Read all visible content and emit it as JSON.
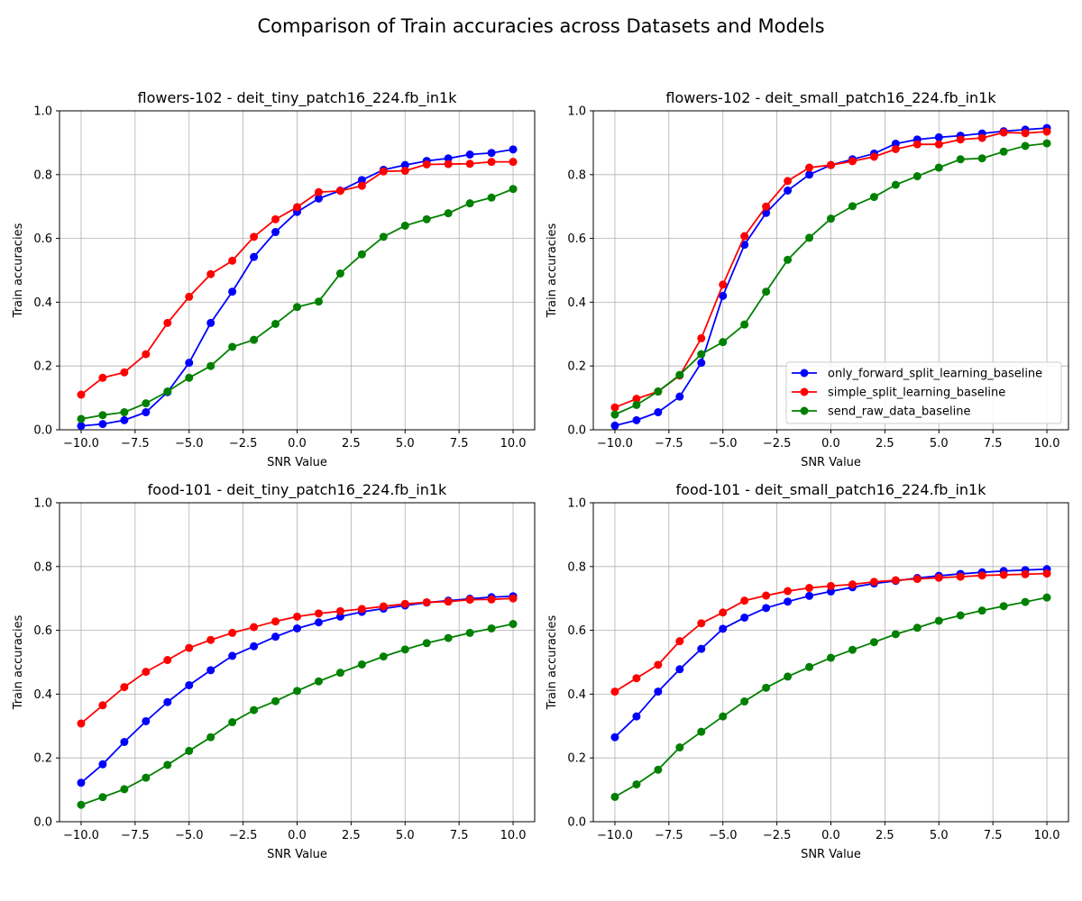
{
  "suptitle": "Comparison of Train accuracies across Datasets and Models",
  "colors": {
    "only_forward_split_learning_baseline": "#0000ff",
    "simple_split_learning_baseline": "#ff0000",
    "send_raw_data_baseline": "#008000",
    "grid": "#b0b0b0",
    "axes": "#000000"
  },
  "legend": {
    "placement": "lower-right",
    "shown_in_panel": 1,
    "entries": [
      "only_forward_split_learning_baseline",
      "simple_split_learning_baseline",
      "send_raw_data_baseline"
    ]
  },
  "chart_data": [
    {
      "type": "line",
      "title": "flowers-102 - deit_tiny_patch16_224.fb_in1k",
      "xlabel": "SNR Value",
      "ylabel": "Train accuracies",
      "xlim": [
        -11,
        11
      ],
      "ylim": [
        0,
        1
      ],
      "xticks": [
        -10,
        -7.5,
        -5,
        -2.5,
        0,
        2.5,
        5,
        7.5,
        10
      ],
      "xtick_labels": [
        "−10.0",
        "−7.5",
        "−5.0",
        "−2.5",
        "0.0",
        "2.5",
        "5.0",
        "7.5",
        "10.0"
      ],
      "yticks": [
        0,
        0.2,
        0.4,
        0.6,
        0.8,
        1.0
      ],
      "ytick_labels": [
        "0.0",
        "0.2",
        "0.4",
        "0.6",
        "0.8",
        "1.0"
      ],
      "grid": true,
      "x": [
        -10,
        -9,
        -8,
        -7,
        -6,
        -5,
        -4,
        -3,
        -2,
        -1,
        0,
        1,
        2,
        3,
        4,
        5,
        6,
        7,
        8,
        9,
        10
      ],
      "series": [
        {
          "name": "only_forward_split_learning_baseline",
          "values": [
            0.012,
            0.018,
            0.03,
            0.055,
            0.118,
            0.21,
            0.335,
            0.433,
            0.542,
            0.62,
            0.683,
            0.725,
            0.75,
            0.783,
            0.815,
            0.83,
            0.843,
            0.851,
            0.863,
            0.868,
            0.879
          ]
        },
        {
          "name": "simple_split_learning_baseline",
          "values": [
            0.11,
            0.163,
            0.18,
            0.237,
            0.335,
            0.417,
            0.488,
            0.53,
            0.605,
            0.66,
            0.698,
            0.745,
            0.749,
            0.765,
            0.81,
            0.812,
            0.832,
            0.833,
            0.834,
            0.84,
            0.84
          ]
        },
        {
          "name": "send_raw_data_baseline",
          "values": [
            0.034,
            0.046,
            0.055,
            0.083,
            0.12,
            0.163,
            0.2,
            0.26,
            0.282,
            0.332,
            0.385,
            0.402,
            0.49,
            0.55,
            0.605,
            0.64,
            0.66,
            0.679,
            0.71,
            0.728,
            0.755
          ]
        }
      ]
    },
    {
      "type": "line",
      "title": "flowers-102 - deit_small_patch16_224.fb_in1k",
      "xlabel": "SNR Value",
      "ylabel": "Train accuracies",
      "xlim": [
        -11,
        11
      ],
      "ylim": [
        0,
        1
      ],
      "xticks": [
        -10,
        -7.5,
        -5,
        -2.5,
        0,
        2.5,
        5,
        7.5,
        10
      ],
      "xtick_labels": [
        "−10.0",
        "−7.5",
        "−5.0",
        "−2.5",
        "0.0",
        "2.5",
        "5.0",
        "7.5",
        "10.0"
      ],
      "yticks": [
        0,
        0.2,
        0.4,
        0.6,
        0.8,
        1.0
      ],
      "ytick_labels": [
        "0.0",
        "0.2",
        "0.4",
        "0.6",
        "0.8",
        "1.0"
      ],
      "grid": true,
      "x": [
        -10,
        -9,
        -8,
        -7,
        -6,
        -5,
        -4,
        -3,
        -2,
        -1,
        0,
        1,
        2,
        3,
        4,
        5,
        6,
        7,
        8,
        9,
        10
      ],
      "series": [
        {
          "name": "only_forward_split_learning_baseline",
          "values": [
            0.013,
            0.03,
            0.055,
            0.104,
            0.21,
            0.42,
            0.58,
            0.68,
            0.75,
            0.8,
            0.83,
            0.848,
            0.866,
            0.897,
            0.91,
            0.917,
            0.922,
            0.929,
            0.936,
            0.941,
            0.946
          ]
        },
        {
          "name": "simple_split_learning_baseline",
          "values": [
            0.07,
            0.097,
            0.12,
            0.17,
            0.287,
            0.455,
            0.607,
            0.7,
            0.78,
            0.822,
            0.83,
            0.842,
            0.856,
            0.88,
            0.895,
            0.895,
            0.91,
            0.915,
            0.932,
            0.93,
            0.935
          ]
        },
        {
          "name": "send_raw_data_baseline",
          "values": [
            0.048,
            0.078,
            0.12,
            0.172,
            0.237,
            0.275,
            0.33,
            0.433,
            0.533,
            0.602,
            0.662,
            0.701,
            0.73,
            0.768,
            0.795,
            0.822,
            0.848,
            0.851,
            0.872,
            0.89,
            0.898
          ]
        }
      ]
    },
    {
      "type": "line",
      "title": "food-101 - deit_tiny_patch16_224.fb_in1k",
      "xlabel": "SNR Value",
      "ylabel": "Train accuracies",
      "xlim": [
        -11,
        11
      ],
      "ylim": [
        0,
        1
      ],
      "xticks": [
        -10,
        -7.5,
        -5,
        -2.5,
        0,
        2.5,
        5,
        7.5,
        10
      ],
      "xtick_labels": [
        "−10.0",
        "−7.5",
        "−5.0",
        "−2.5",
        "0.0",
        "2.5",
        "5.0",
        "7.5",
        "10.0"
      ],
      "yticks": [
        0,
        0.2,
        0.4,
        0.6,
        0.8,
        1.0
      ],
      "ytick_labels": [
        "0.0",
        "0.2",
        "0.4",
        "0.6",
        "0.8",
        "1.0"
      ],
      "grid": true,
      "x": [
        -10,
        -9,
        -8,
        -7,
        -6,
        -5,
        -4,
        -3,
        -2,
        -1,
        0,
        1,
        2,
        3,
        4,
        5,
        6,
        7,
        8,
        9,
        10
      ],
      "series": [
        {
          "name": "only_forward_split_learning_baseline",
          "values": [
            0.122,
            0.18,
            0.25,
            0.315,
            0.375,
            0.428,
            0.475,
            0.52,
            0.55,
            0.58,
            0.606,
            0.625,
            0.643,
            0.658,
            0.668,
            0.678,
            0.687,
            0.693,
            0.699,
            0.704,
            0.707
          ]
        },
        {
          "name": "simple_split_learning_baseline",
          "values": [
            0.308,
            0.365,
            0.422,
            0.47,
            0.507,
            0.545,
            0.57,
            0.592,
            0.61,
            0.628,
            0.643,
            0.653,
            0.66,
            0.667,
            0.675,
            0.683,
            0.688,
            0.69,
            0.696,
            0.697,
            0.7
          ]
        },
        {
          "name": "send_raw_data_baseline",
          "values": [
            0.053,
            0.077,
            0.102,
            0.138,
            0.178,
            0.222,
            0.265,
            0.312,
            0.35,
            0.378,
            0.41,
            0.44,
            0.467,
            0.493,
            0.518,
            0.54,
            0.56,
            0.576,
            0.592,
            0.606,
            0.62
          ]
        }
      ]
    },
    {
      "type": "line",
      "title": "food-101 - deit_small_patch16_224.fb_in1k",
      "xlabel": "SNR Value",
      "ylabel": "Train accuracies",
      "xlim": [
        -11,
        11
      ],
      "ylim": [
        0,
        1
      ],
      "xticks": [
        -10,
        -7.5,
        -5,
        -2.5,
        0,
        2.5,
        5,
        7.5,
        10
      ],
      "xtick_labels": [
        "−10.0",
        "−7.5",
        "−5.0",
        "−2.5",
        "0.0",
        "2.5",
        "5.0",
        "7.5",
        "10.0"
      ],
      "yticks": [
        0,
        0.2,
        0.4,
        0.6,
        0.8,
        1.0
      ],
      "ytick_labels": [
        "0.0",
        "0.2",
        "0.4",
        "0.6",
        "0.8",
        "1.0"
      ],
      "grid": true,
      "x": [
        -10,
        -9,
        -8,
        -7,
        -6,
        -5,
        -4,
        -3,
        -2,
        -1,
        0,
        1,
        2,
        3,
        4,
        5,
        6,
        7,
        8,
        9,
        10
      ],
      "series": [
        {
          "name": "only_forward_split_learning_baseline",
          "values": [
            0.265,
            0.33,
            0.408,
            0.478,
            0.542,
            0.605,
            0.64,
            0.67,
            0.69,
            0.708,
            0.722,
            0.735,
            0.747,
            0.755,
            0.764,
            0.771,
            0.777,
            0.782,
            0.786,
            0.789,
            0.792
          ]
        },
        {
          "name": "simple_split_learning_baseline",
          "values": [
            0.408,
            0.45,
            0.492,
            0.566,
            0.622,
            0.656,
            0.693,
            0.709,
            0.723,
            0.733,
            0.739,
            0.744,
            0.752,
            0.757,
            0.761,
            0.765,
            0.768,
            0.772,
            0.774,
            0.776,
            0.778
          ]
        },
        {
          "name": "send_raw_data_baseline",
          "values": [
            0.078,
            0.117,
            0.163,
            0.233,
            0.282,
            0.33,
            0.377,
            0.42,
            0.455,
            0.485,
            0.514,
            0.539,
            0.563,
            0.588,
            0.608,
            0.63,
            0.647,
            0.662,
            0.676,
            0.689,
            0.703
          ]
        }
      ]
    }
  ]
}
